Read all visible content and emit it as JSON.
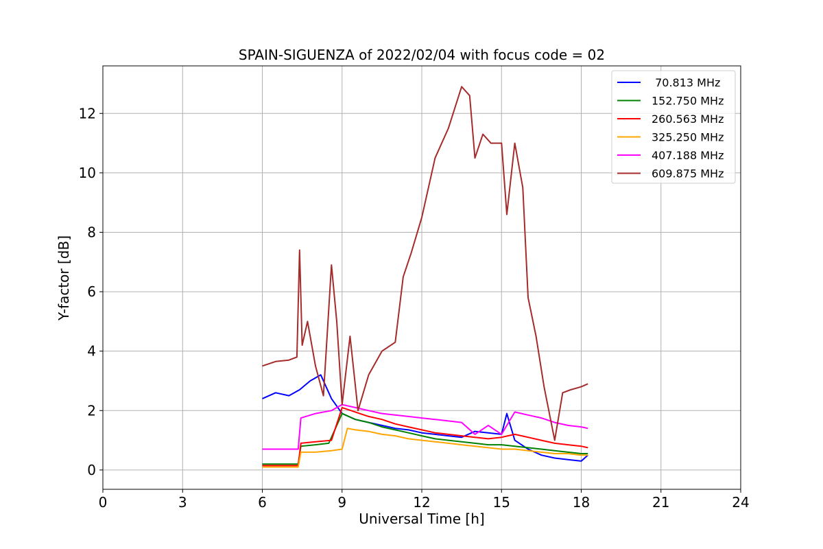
{
  "chart_data": {
    "type": "line",
    "title": "SPAIN-SIGUENZA of 2022/02/04 with focus code = 02",
    "xlabel": "Universal Time [h]",
    "ylabel": "Y-factor [dB]",
    "xlim": [
      0,
      24
    ],
    "ylim": [
      -0.65,
      13.6
    ],
    "xticks": [
      0,
      3,
      6,
      9,
      12,
      15,
      18,
      21,
      24
    ],
    "yticks": [
      0,
      2,
      4,
      6,
      8,
      10,
      12
    ],
    "grid": true,
    "legend_position": "top-right",
    "series": [
      {
        "name": " 70.813 MHz",
        "color": "#0000ff",
        "x": [
          6.0,
          6.5,
          7.0,
          7.4,
          7.8,
          8.2,
          8.6,
          9.0,
          9.5,
          10.0,
          10.5,
          11.0,
          11.5,
          12.0,
          12.5,
          13.0,
          13.5,
          14.0,
          14.5,
          15.0,
          15.2,
          15.5,
          16.0,
          16.5,
          17.0,
          17.5,
          18.0,
          18.25
        ],
        "y": [
          2.4,
          2.6,
          2.5,
          2.7,
          3.0,
          3.2,
          2.4,
          1.9,
          1.7,
          1.6,
          1.5,
          1.4,
          1.35,
          1.25,
          1.2,
          1.15,
          1.1,
          1.3,
          1.25,
          1.2,
          1.9,
          1.0,
          0.7,
          0.5,
          0.4,
          0.35,
          0.3,
          0.5
        ]
      },
      {
        "name": "152.750 MHz",
        "color": "#008000",
        "x": [
          6.0,
          7.0,
          7.35,
          7.45,
          8.0,
          8.5,
          9.0,
          9.5,
          10.0,
          10.5,
          11.0,
          11.5,
          12.0,
          12.5,
          13.0,
          13.5,
          14.0,
          14.5,
          15.0,
          15.5,
          16.0,
          16.5,
          17.0,
          17.5,
          18.0,
          18.25
        ],
        "y": [
          0.2,
          0.2,
          0.2,
          0.8,
          0.85,
          0.9,
          1.9,
          1.7,
          1.6,
          1.45,
          1.35,
          1.25,
          1.15,
          1.05,
          1.0,
          0.95,
          0.9,
          0.85,
          0.85,
          0.8,
          0.75,
          0.7,
          0.65,
          0.6,
          0.55,
          0.55
        ]
      },
      {
        "name": "260.563 MHz",
        "color": "#ff0000",
        "x": [
          6.0,
          7.0,
          7.35,
          7.45,
          8.0,
          8.6,
          9.0,
          9.5,
          10.0,
          10.5,
          11.0,
          11.5,
          12.0,
          12.5,
          13.0,
          13.5,
          14.0,
          14.5,
          15.0,
          15.5,
          16.0,
          16.5,
          17.0,
          17.5,
          18.0,
          18.25
        ],
        "y": [
          0.15,
          0.15,
          0.15,
          0.9,
          0.95,
          1.0,
          2.1,
          1.95,
          1.8,
          1.7,
          1.55,
          1.45,
          1.35,
          1.25,
          1.2,
          1.15,
          1.1,
          1.05,
          1.1,
          1.2,
          1.1,
          1.0,
          0.9,
          0.85,
          0.8,
          0.75
        ]
      },
      {
        "name": "325.250 MHz",
        "color": "#ffa500",
        "x": [
          6.0,
          7.0,
          7.35,
          7.45,
          8.0,
          8.6,
          9.0,
          9.2,
          9.5,
          10.0,
          10.5,
          11.0,
          11.5,
          12.0,
          12.5,
          13.0,
          13.5,
          14.0,
          14.5,
          15.0,
          15.5,
          16.0,
          16.5,
          17.0,
          17.5,
          18.0,
          18.25
        ],
        "y": [
          0.1,
          0.1,
          0.1,
          0.6,
          0.6,
          0.65,
          0.7,
          1.4,
          1.35,
          1.3,
          1.2,
          1.15,
          1.05,
          1.0,
          0.95,
          0.9,
          0.85,
          0.8,
          0.75,
          0.7,
          0.7,
          0.65,
          0.6,
          0.55,
          0.55,
          0.5,
          0.5
        ]
      },
      {
        "name": "407.188 MHz",
        "color": "#ff00ff",
        "x": [
          6.0,
          7.0,
          7.35,
          7.45,
          8.0,
          8.6,
          9.0,
          9.5,
          10.0,
          10.5,
          11.0,
          11.5,
          12.0,
          12.5,
          13.0,
          13.5,
          14.0,
          14.5,
          15.0,
          15.5,
          16.0,
          16.5,
          17.0,
          17.5,
          18.0,
          18.25
        ],
        "y": [
          0.7,
          0.7,
          0.7,
          1.75,
          1.9,
          2.0,
          2.2,
          2.1,
          2.0,
          1.9,
          1.85,
          1.8,
          1.75,
          1.7,
          1.65,
          1.6,
          1.2,
          1.5,
          1.2,
          1.95,
          1.85,
          1.75,
          1.6,
          1.5,
          1.45,
          1.4
        ]
      },
      {
        "name": "609.875 MHz",
        "color": "#a52a2a",
        "x": [
          6.0,
          6.5,
          7.0,
          7.3,
          7.4,
          7.5,
          7.7,
          8.0,
          8.3,
          8.6,
          8.8,
          9.0,
          9.3,
          9.6,
          10.0,
          10.5,
          11.0,
          11.3,
          11.6,
          12.0,
          12.5,
          13.0,
          13.5,
          13.8,
          14.0,
          14.3,
          14.6,
          15.0,
          15.2,
          15.5,
          15.8,
          16.0,
          16.3,
          16.6,
          17.0,
          17.3,
          17.6,
          18.0,
          18.25
        ],
        "y": [
          3.5,
          3.65,
          3.7,
          3.8,
          7.4,
          4.2,
          5.0,
          3.5,
          2.5,
          6.9,
          5.0,
          2.2,
          4.5,
          2.0,
          3.2,
          4.0,
          4.3,
          6.5,
          7.3,
          8.5,
          10.5,
          11.5,
          12.9,
          12.6,
          10.5,
          11.3,
          11.0,
          11.0,
          8.6,
          11.0,
          9.5,
          5.8,
          4.5,
          2.8,
          1.0,
          2.6,
          2.7,
          2.8,
          2.9
        ]
      }
    ]
  }
}
